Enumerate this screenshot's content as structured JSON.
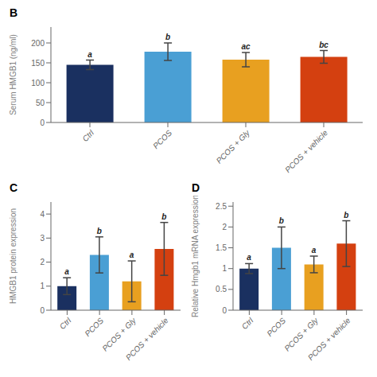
{
  "chart_data": [
    {
      "type": "bar",
      "title": "B",
      "ylabel": "Serum HMGB1 (ng/ml)",
      "categories": [
        "Ctrl",
        "PCOS",
        "PCOS + Gly",
        "PCOS + vehicle"
      ],
      "values": [
        145,
        178,
        158,
        165
      ],
      "errors": [
        12,
        22,
        18,
        16
      ],
      "colors": [
        "#1a3060",
        "#4a9fd4",
        "#e8a020",
        "#d44010"
      ],
      "annotations": [
        "a",
        "b",
        "ac",
        "bc"
      ],
      "ylim": [
        0,
        240
      ],
      "yticks": [
        0,
        50,
        100,
        150,
        200
      ],
      "grid": false
    },
    {
      "type": "bar",
      "title": "C",
      "ylabel": "HMGB1 protein expression",
      "categories": [
        "Ctrl",
        "PCOS",
        "PCOS + Gly",
        "PCOS + vehicle"
      ],
      "values": [
        1.0,
        2.3,
        1.2,
        2.55
      ],
      "errors": [
        0.35,
        0.75,
        0.85,
        1.1
      ],
      "colors": [
        "#1a3060",
        "#4a9fd4",
        "#e8a020",
        "#d44010"
      ],
      "annotations": [
        "a",
        "b",
        "a",
        "b"
      ],
      "ylim": [
        0,
        4.5
      ],
      "yticks": [
        0,
        1,
        2,
        3,
        4
      ],
      "grid": false
    },
    {
      "type": "bar",
      "title": "D",
      "ylabel": "Relative Hmgb1 mRNA expression",
      "categories": [
        "Ctrl",
        "PCOS",
        "PCOS + Gly",
        "PCOS + vehicle"
      ],
      "values": [
        1.0,
        1.5,
        1.1,
        1.6
      ],
      "errors": [
        0.12,
        0.5,
        0.2,
        0.55
      ],
      "colors": [
        "#1a3060",
        "#4a9fd4",
        "#e8a020",
        "#d44010"
      ],
      "annotations": [
        "a",
        "b",
        "a",
        "b"
      ],
      "ylim": [
        0.0,
        2.6
      ],
      "yticks": [
        0.0,
        0.5,
        1.0,
        1.5,
        2.0,
        2.5
      ],
      "grid": false
    }
  ]
}
